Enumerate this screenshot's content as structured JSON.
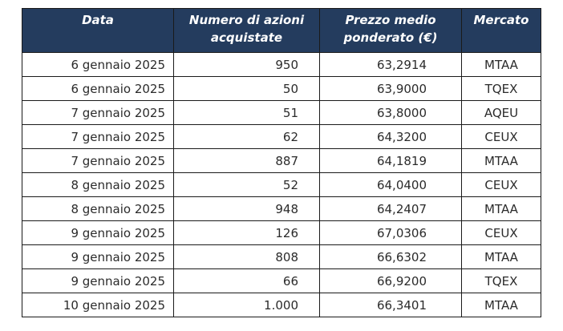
{
  "table": {
    "headers": [
      "Data",
      "Numero di azioni acquistate",
      "Prezzo medio ponderato (€)",
      "Mercato"
    ],
    "rows": [
      [
        "6 gennaio 2025",
        "950",
        "63,2914",
        "MTAA"
      ],
      [
        "6 gennaio 2025",
        "50",
        "63,9000",
        "TQEX"
      ],
      [
        "7 gennaio 2025",
        "51",
        "63,8000",
        "AQEU"
      ],
      [
        "7 gennaio 2025",
        "62",
        "64,3200",
        "CEUX"
      ],
      [
        "7 gennaio 2025",
        "887",
        "64,1819",
        "MTAA"
      ],
      [
        "8 gennaio 2025",
        "52",
        "64,0400",
        "CEUX"
      ],
      [
        "8 gennaio 2025",
        "948",
        "64,2407",
        "MTAA"
      ],
      [
        "9 gennaio 2025",
        "126",
        "67,0306",
        "CEUX"
      ],
      [
        "9 gennaio 2025",
        "808",
        "66,6302",
        "MTAA"
      ],
      [
        "9 gennaio 2025",
        "66",
        "66,9200",
        "TQEX"
      ],
      [
        "10 gennaio 2025",
        "1.000",
        "66,3401",
        "MTAA"
      ]
    ]
  },
  "colors": {
    "header_background": "#243c5e",
    "header_text": "#ffffff",
    "border": "#1a1a1a",
    "cell_text": "#2b2b2b"
  }
}
